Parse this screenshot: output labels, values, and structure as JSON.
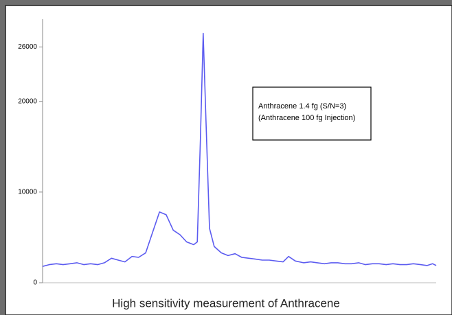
{
  "chart_data": {
    "type": "line",
    "caption": "High sensitivity measurement of Anthracene",
    "annotation": [
      "Anthracene 1.4 fg (S/N=3)",
      "(Anthracene 100 fg Injection)"
    ],
    "ylim": [
      0,
      28000
    ],
    "yticks": [
      0,
      10000,
      20000,
      26000
    ],
    "xlim": [
      0,
      100
    ],
    "series": [
      {
        "color": "#5b5bf0",
        "x": [
          0,
          1.7,
          3.5,
          5.2,
          7,
          8.7,
          10.5,
          12.2,
          14,
          15.7,
          17.5,
          19.2,
          20.9,
          22.7,
          24.4,
          26.2,
          27.9,
          29.7,
          31.4,
          33.2,
          34.9,
          36.6,
          38.4,
          39.3,
          40.1,
          40.8,
          41.5,
          42.4,
          43.6,
          45.4,
          47.1,
          48.9,
          50.6,
          52.4,
          54.1,
          55.8,
          57.6,
          59.3,
          61.1,
          62.5,
          64.2,
          66.3,
          68.1,
          69.8,
          71.6,
          73.3,
          75,
          76.8,
          78.5,
          80.3,
          82,
          83.8,
          85.5,
          87.3,
          89,
          90.8,
          92.5,
          94.2,
          96,
          97.7,
          99.1,
          100
        ],
        "values": [
          1800,
          2000,
          2100,
          2000,
          2100,
          2200,
          2000,
          2100,
          2000,
          2200,
          2700,
          2500,
          2300,
          2900,
          2800,
          3300,
          5500,
          7800,
          7500,
          5800,
          5300,
          4500,
          4200,
          4500,
          16000,
          27500,
          18000,
          6000,
          4000,
          3300,
          3000,
          3200,
          2800,
          2700,
          2600,
          2500,
          2500,
          2400,
          2300,
          2900,
          2400,
          2200,
          2300,
          2200,
          2100,
          2200,
          2200,
          2100,
          2100,
          2200,
          2000,
          2100,
          2100,
          2000,
          2100,
          2000,
          2000,
          2100,
          2000,
          1900,
          2100,
          1900
        ]
      }
    ]
  }
}
